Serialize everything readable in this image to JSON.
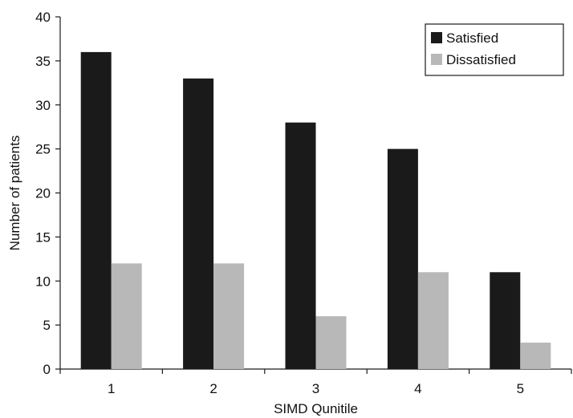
{
  "chart_data": {
    "type": "bar",
    "categories": [
      "1",
      "2",
      "3",
      "4",
      "5"
    ],
    "series": [
      {
        "name": "Satisfied",
        "values": [
          36,
          33,
          28,
          25,
          11
        ],
        "color": "#1a1a1a"
      },
      {
        "name": "Dissatisfied",
        "values": [
          12,
          12,
          6,
          11,
          3
        ],
        "color": "#b8b8b8"
      }
    ],
    "xlabel": "SIMD Qunitile",
    "ylabel": "Number of patients",
    "ylim": [
      0,
      40
    ],
    "yticks": [
      0,
      5,
      10,
      15,
      20,
      25,
      30,
      35,
      40
    ],
    "grid": false,
    "legend_position": "top-right"
  }
}
